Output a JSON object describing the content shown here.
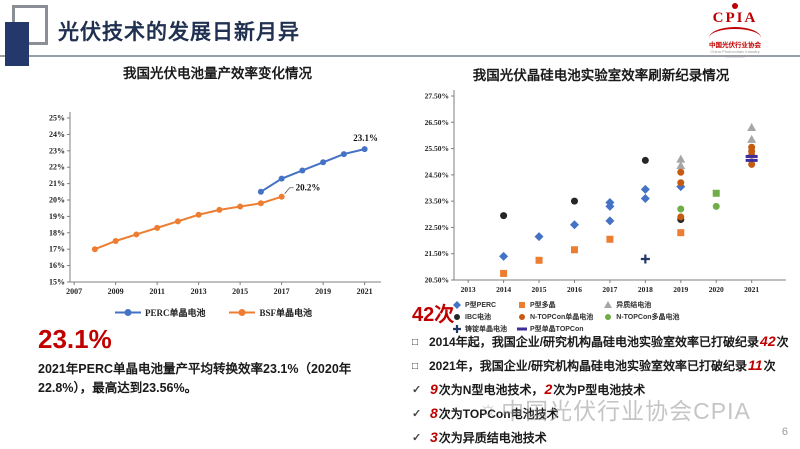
{
  "header": {
    "title": "光伏技术的发展日新月异",
    "logo": {
      "acronym": "CPIA",
      "org": "中国光伏行业协会",
      "sub": "China Photovoltaic Industry Association"
    }
  },
  "left": {
    "chart_title": "我国光伏电池量产效率变化情况",
    "highlight": "23.1%",
    "caption": "2021年PERC单晶电池量产平均转换效率23.1%（2020年22.8%），最高达到23.56%。"
  },
  "right": {
    "chart_title": "我国光伏晶硅电池实验室效率刷新纪录情况",
    "highlight": "42次",
    "bullets": [
      {
        "marker": "square",
        "parts": [
          [
            "2014年起，我国企业/研究机构晶硅电池实验室效率已打破纪录",
            false
          ],
          [
            "42",
            true
          ],
          [
            "次",
            false
          ]
        ]
      },
      {
        "marker": "square",
        "parts": [
          [
            "2021年，我国企业/研究机构晶硅电池实验室效率已打破纪录",
            false
          ],
          [
            "11",
            true
          ],
          [
            "次",
            false
          ]
        ]
      },
      {
        "marker": "check",
        "parts": [
          [
            "9",
            true
          ],
          [
            "次为N型电池技术，",
            false
          ],
          [
            "2",
            true
          ],
          [
            "次为P型电池技术",
            false
          ]
        ]
      },
      {
        "marker": "check",
        "parts": [
          [
            "8",
            true
          ],
          [
            "次为TOPCon电池技术",
            false
          ]
        ]
      },
      {
        "marker": "check",
        "parts": [
          [
            "3",
            true
          ],
          [
            "次为异质结电池技术",
            false
          ]
        ]
      }
    ]
  },
  "watermark": {
    "text": "中国光伏行业协会CPIA"
  },
  "page_number": "6",
  "colors": {
    "accent_red": "#c00000",
    "title_navy": "#1f3050",
    "perc_blue": "#4472C4",
    "bsf_orange": "#ED7D31",
    "hjt_gray": "#A6A6A6",
    "ibc_black": "#262626",
    "ntopcon_mono_orange": "#C55A11",
    "ntopcon_multi_green": "#70AD47",
    "ingot_navy": "#203864",
    "ptopcon_purple": "#3D2E9E"
  },
  "chart_data": [
    {
      "type": "line",
      "title": "我国光伏电池量产效率变化情况",
      "xlabel": "",
      "ylabel": "",
      "xlim": [
        2006.8,
        2021.5
      ],
      "ylim": [
        15,
        25
      ],
      "grid": false,
      "legend_position": "bottom",
      "yticks": [
        [
          15,
          "15%"
        ],
        [
          16,
          "16%"
        ],
        [
          17,
          "17%"
        ],
        [
          18,
          "18%"
        ],
        [
          19,
          "19%"
        ],
        [
          20,
          "20%"
        ],
        [
          21,
          "21%"
        ],
        [
          22,
          "22%"
        ],
        [
          23,
          "23%"
        ],
        [
          24,
          "24%"
        ],
        [
          25,
          "25%"
        ]
      ],
      "xticks": [
        [
          2007,
          "2007"
        ],
        [
          2009,
          "2009"
        ],
        [
          2011,
          "2011"
        ],
        [
          2013,
          "2013"
        ],
        [
          2015,
          "2015"
        ],
        [
          2017,
          "2017"
        ],
        [
          2019,
          "2019"
        ],
        [
          2021,
          "2021"
        ]
      ],
      "series": [
        {
          "name": "PERC单晶电池",
          "color": "#4472C4",
          "x": [
            2016,
            2017,
            2018,
            2019,
            2020,
            2021
          ],
          "values": [
            20.5,
            21.3,
            21.8,
            22.3,
            22.8,
            23.1
          ],
          "end_label": "23.1%",
          "label_side": "above"
        },
        {
          "name": "BSF单晶电池",
          "color": "#ED7D31",
          "x": [
            2008,
            2009,
            2010,
            2011,
            2012,
            2013,
            2014,
            2015,
            2016,
            2017
          ],
          "values": [
            17.0,
            17.5,
            17.9,
            18.3,
            18.7,
            19.1,
            19.4,
            19.6,
            19.8,
            20.2
          ],
          "end_label": "20.2%",
          "label_side": "right"
        }
      ]
    },
    {
      "type": "scatter",
      "title": "我国光伏晶硅电池实验室效率刷新纪录情况",
      "xlabel": "",
      "ylabel": "",
      "xlim": [
        2012.6,
        2021.8
      ],
      "ylim": [
        20.5,
        27.5
      ],
      "grid": false,
      "legend_position": "bottom",
      "yticks": [
        [
          20.5,
          "20.50%"
        ],
        [
          21.5,
          "21.50%"
        ],
        [
          22.5,
          "22.50%"
        ],
        [
          23.5,
          "23.50%"
        ],
        [
          24.5,
          "24.50%"
        ],
        [
          25.5,
          "25.50%"
        ],
        [
          26.5,
          "26.50%"
        ],
        [
          27.5,
          "27.50%"
        ]
      ],
      "xticks": [
        [
          2013,
          "2013"
        ],
        [
          2014,
          "2014"
        ],
        [
          2015,
          "2015"
        ],
        [
          2016,
          "2016"
        ],
        [
          2017,
          "2017"
        ],
        [
          2018,
          "2018"
        ],
        [
          2019,
          "2019"
        ],
        [
          2020,
          "2020"
        ],
        [
          2021,
          "2021"
        ]
      ],
      "series": [
        {
          "name": "P型PERC",
          "marker": "diamond",
          "color": "#4472C4",
          "points": [
            [
              2014,
              21.4
            ],
            [
              2015,
              22.15
            ],
            [
              2016,
              22.6
            ],
            [
              2017,
              22.75
            ],
            [
              2017,
              23.3
            ],
            [
              2017,
              23.45
            ],
            [
              2018,
              23.6
            ],
            [
              2018,
              23.95
            ],
            [
              2019,
              24.05
            ]
          ]
        },
        {
          "name": "P型多晶",
          "marker": "square",
          "color": "#ED7D31",
          "points": [
            [
              2014,
              20.75
            ],
            [
              2015,
              21.25
            ],
            [
              2016,
              21.65
            ],
            [
              2017,
              22.05
            ],
            [
              2019,
              22.3
            ]
          ]
        },
        {
          "name": "异质结电池",
          "marker": "triangle",
          "color": "#A6A6A6",
          "points": [
            [
              2019,
              24.85
            ],
            [
              2019,
              25.1
            ],
            [
              2021,
              25.85
            ],
            [
              2021,
              26.3
            ]
          ]
        },
        {
          "name": "IBC电池",
          "marker": "circle",
          "color": "#262626",
          "points": [
            [
              2014,
              22.95
            ],
            [
              2016,
              23.5
            ],
            [
              2018,
              25.05
            ],
            [
              2019,
              22.8
            ]
          ]
        },
        {
          "name": "N-TOPCon单晶电池",
          "marker": "circle",
          "color": "#C55A11",
          "points": [
            [
              2019,
              22.9
            ],
            [
              2019,
              24.2
            ],
            [
              2019,
              24.6
            ],
            [
              2021,
              24.9
            ],
            [
              2021,
              25.25
            ],
            [
              2021,
              25.4
            ],
            [
              2021,
              25.55
            ]
          ]
        },
        {
          "name": "N-TOPCon多晶电池",
          "marker": "circle",
          "color": "#70AD47",
          "points": [
            [
              2019,
              23.2
            ],
            [
              2020,
              23.3
            ],
            [
              2020,
              23.8,
              "square"
            ]
          ]
        },
        {
          "name": "铸锭单晶电池",
          "marker": "plus",
          "color": "#203864",
          "points": [
            [
              2018,
              21.3
            ]
          ]
        },
        {
          "name": "P型单晶TOPCon",
          "marker": "dash",
          "color": "#3D2E9E",
          "points": [
            [
              2021,
              25.05
            ],
            [
              2021,
              25.2
            ]
          ]
        }
      ],
      "legend_columns": [
        [
          "P型PERC",
          "IBC电池",
          "铸锭单晶电池"
        ],
        [
          "P型多晶",
          "N-TOPCon单晶电池",
          "P型单晶TOPCon"
        ],
        [
          "异质结电池",
          "N-TOPCon多晶电池"
        ]
      ]
    }
  ]
}
